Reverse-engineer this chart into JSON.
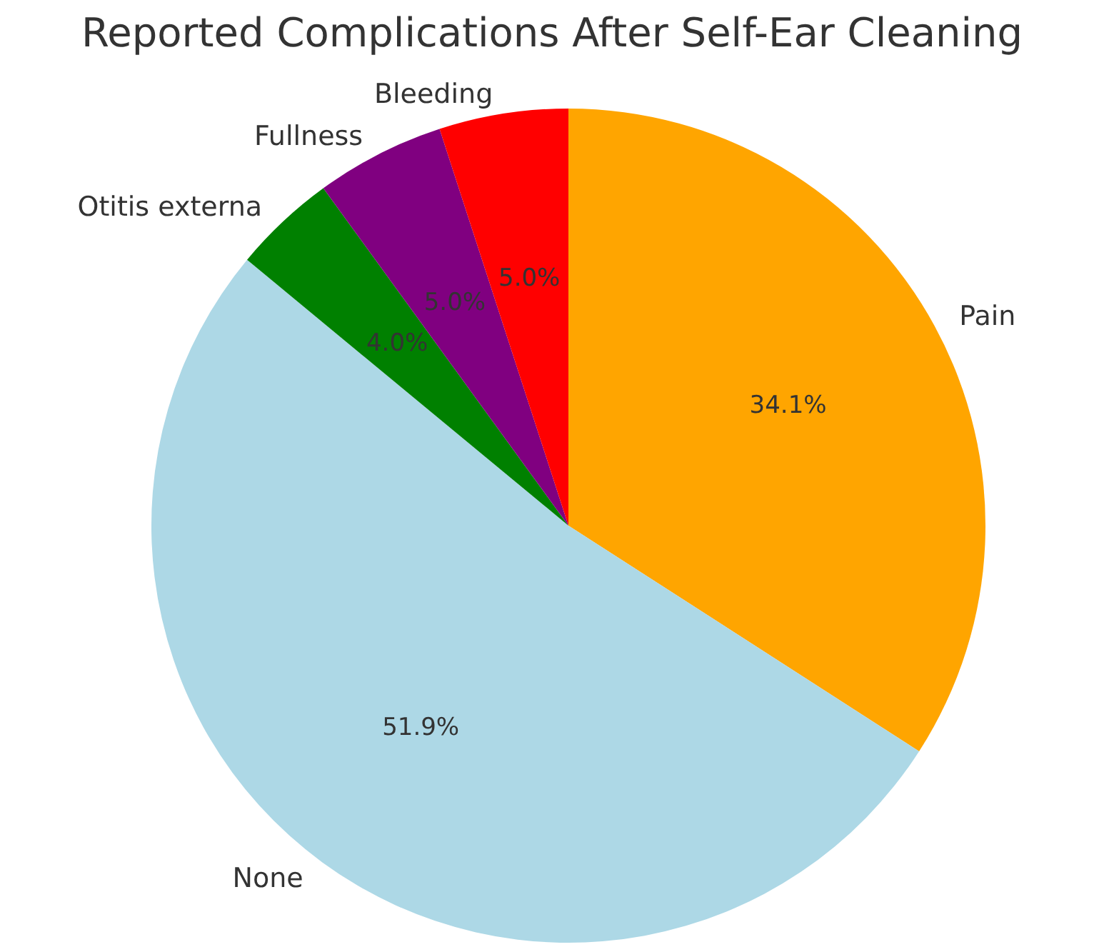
{
  "chart_data": {
    "type": "pie",
    "title": "Reported Complications After Self-Ear Cleaning",
    "categories": [
      "Pain",
      "None",
      "Otitis externa",
      "Fullness",
      "Bleeding"
    ],
    "values": [
      34.1,
      51.9,
      4.0,
      5.0,
      5.0
    ],
    "colors": [
      "#ffa500",
      "#add8e6",
      "#008000",
      "#800080",
      "#ff0000"
    ],
    "value_labels": [
      "34.1%",
      "51.9%",
      "4.0%",
      "5.0%",
      "5.0%"
    ]
  }
}
